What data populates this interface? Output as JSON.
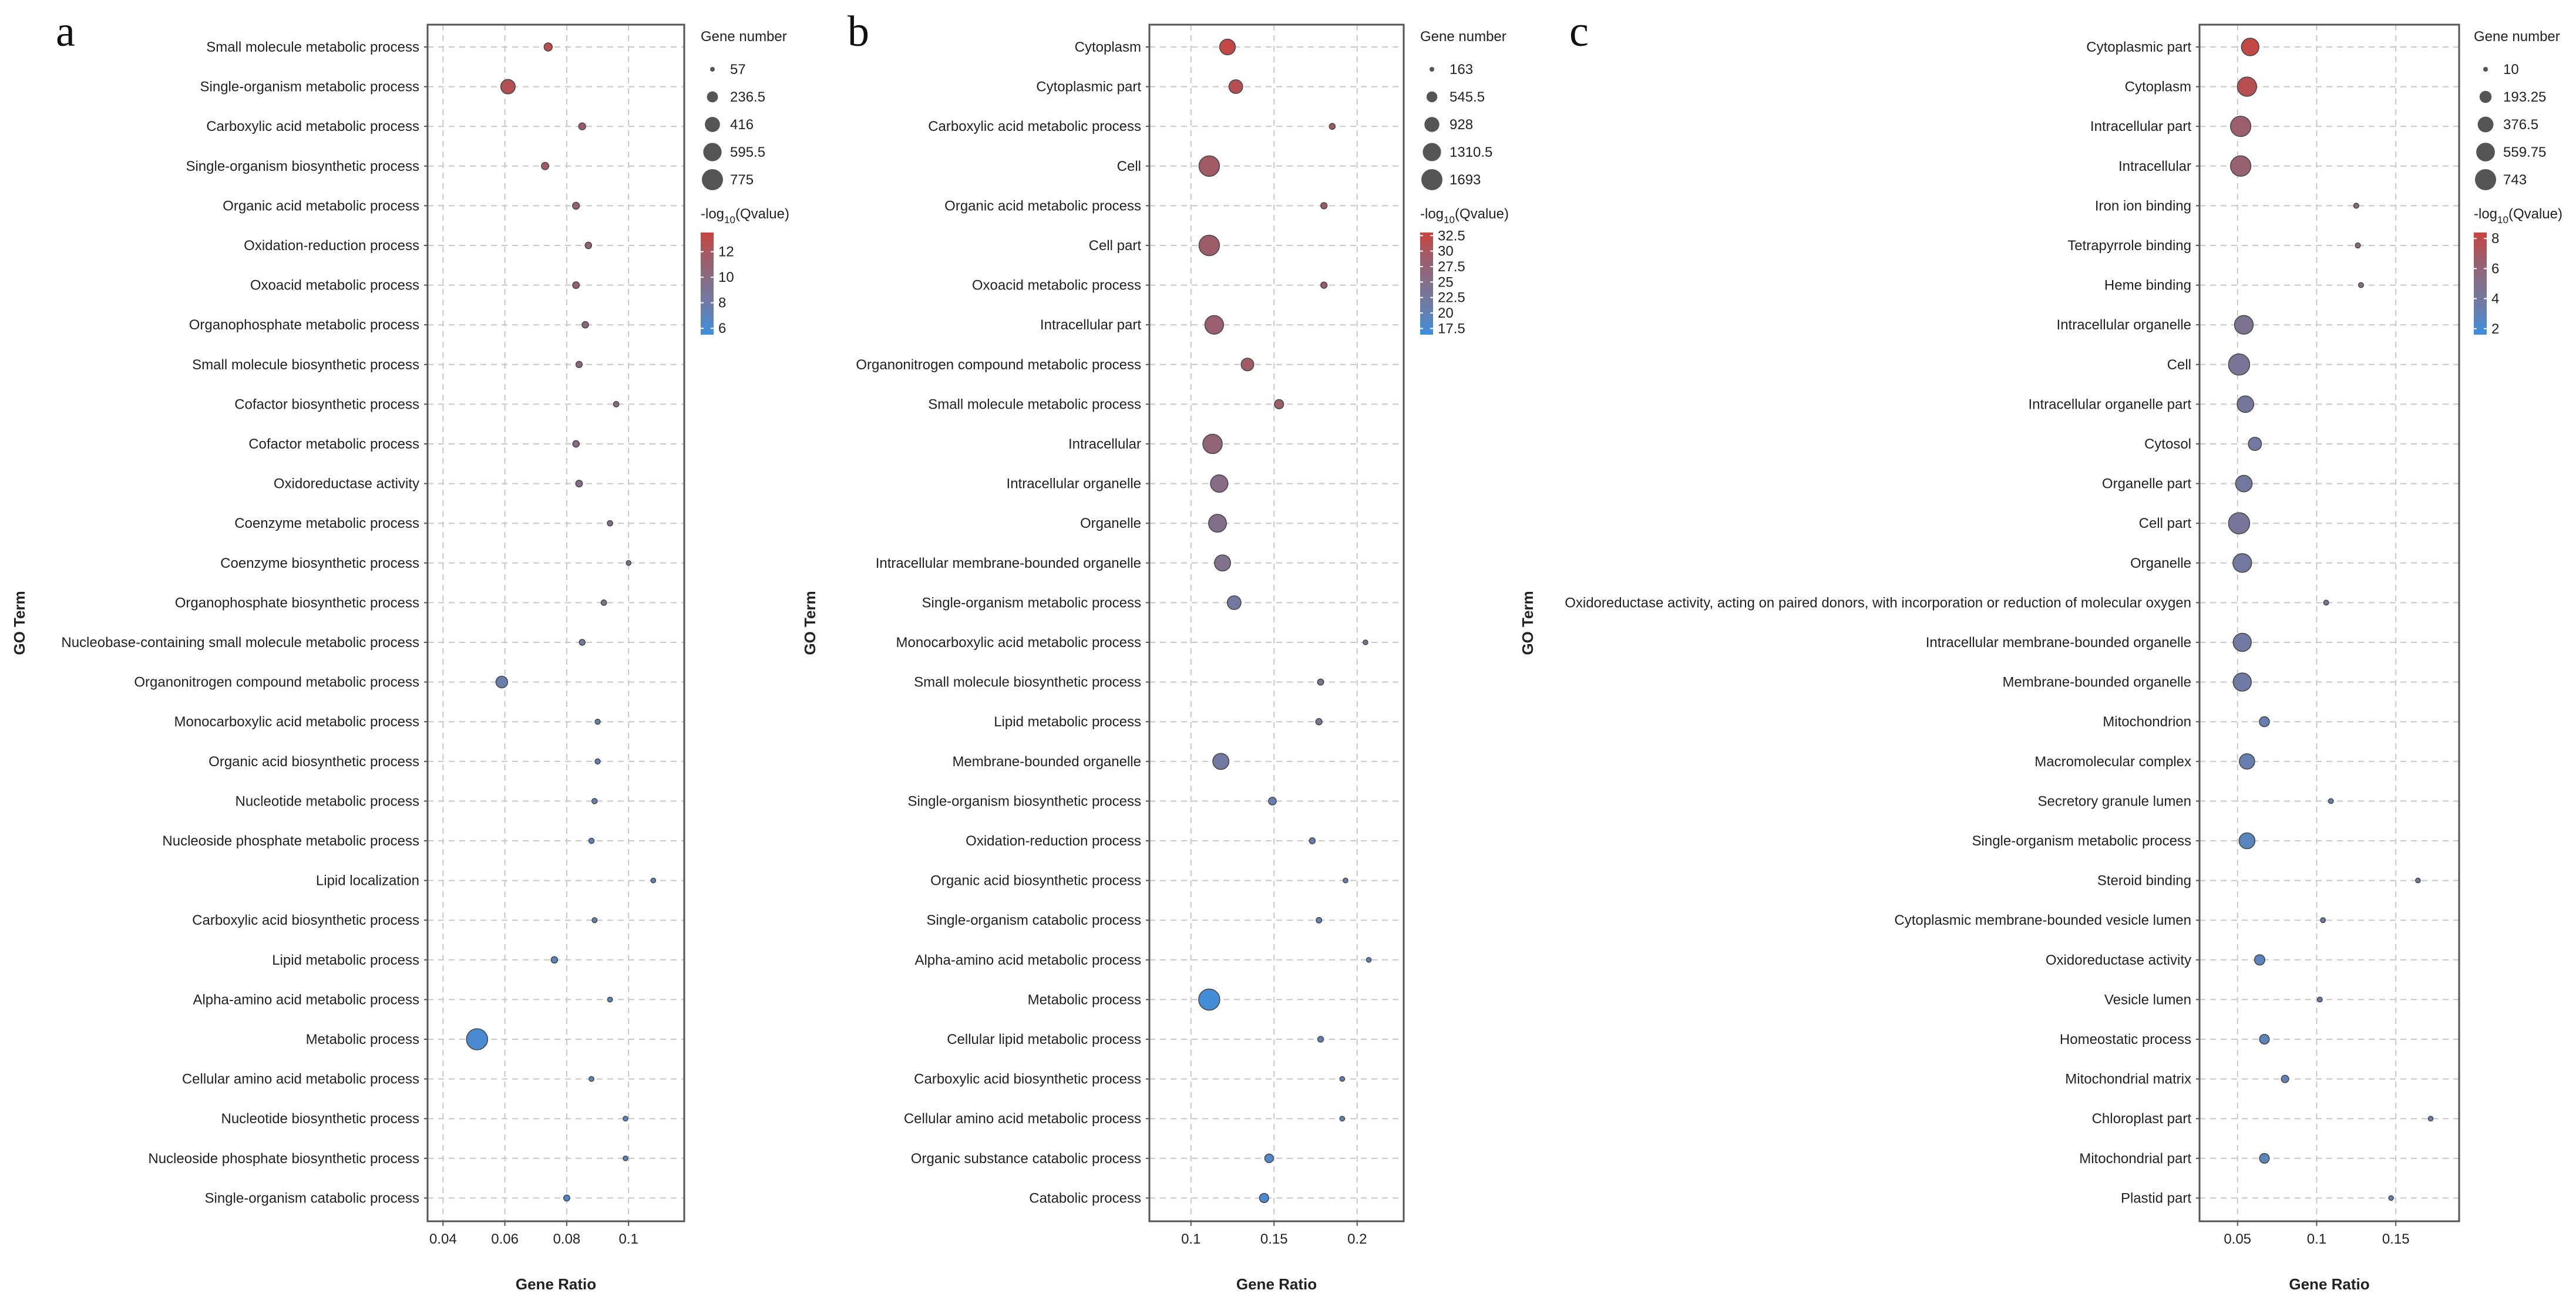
{
  "chart_data": [
    {
      "type": "scatter",
      "panel_label": "a",
      "xlabel": "Gene Ratio",
      "ylabel": "GO Term",
      "xlim": [
        0.035,
        0.118
      ],
      "xticks": [
        0.04,
        0.06,
        0.08,
        0.1
      ],
      "xtick_labels": [
        "0.04",
        "0.06",
        "0.08",
        "0.1"
      ],
      "grid": true,
      "legend_position": "right",
      "size_legend": {
        "title": "Gene number",
        "values": [
          57,
          236.5,
          416,
          595.5,
          775
        ],
        "labels": [
          "57",
          "236.5",
          "416",
          "595.5",
          "775"
        ]
      },
      "color_legend": {
        "title_prefix": "-log",
        "title_sub": "10",
        "title_suffix": "(Qvalue)",
        "min": 5.5,
        "max": 13.5,
        "ticks": [
          6,
          8,
          10,
          12
        ],
        "tick_labels": [
          "6",
          "8",
          "10",
          "12"
        ],
        "low_color": "#3d8fdf",
        "high_color": "#c9443f"
      },
      "points": [
        {
          "term": "Small molecule metabolic process",
          "x": 0.074,
          "genes": 140,
          "q": 13.0
        },
        {
          "term": "Single-organism metabolic process",
          "x": 0.061,
          "genes": 380,
          "q": 12.6
        },
        {
          "term": "Carboxylic acid metabolic process",
          "x": 0.085,
          "genes": 105,
          "q": 11.6
        },
        {
          "term": "Single-organism biosynthetic process",
          "x": 0.073,
          "genes": 115,
          "q": 11.8
        },
        {
          "term": "Organic acid metabolic process",
          "x": 0.083,
          "genes": 105,
          "q": 11.4
        },
        {
          "term": "Oxidation-reduction process",
          "x": 0.087,
          "genes": 95,
          "q": 11.0
        },
        {
          "term": "Oxoacid metabolic process",
          "x": 0.083,
          "genes": 100,
          "q": 11.0
        },
        {
          "term": "Organophosphate metabolic process",
          "x": 0.086,
          "genes": 95,
          "q": 10.6
        },
        {
          "term": "Small molecule biosynthetic process",
          "x": 0.084,
          "genes": 90,
          "q": 10.4
        },
        {
          "term": "Cofactor biosynthetic process",
          "x": 0.096,
          "genes": 70,
          "q": 10.0
        },
        {
          "term": "Cofactor metabolic process",
          "x": 0.083,
          "genes": 95,
          "q": 10.0
        },
        {
          "term": "Oxidoreductase activity",
          "x": 0.084,
          "genes": 100,
          "q": 9.8
        },
        {
          "term": "Coenzyme metabolic process",
          "x": 0.094,
          "genes": 70,
          "q": 9.6
        },
        {
          "term": "Coenzyme biosynthetic process",
          "x": 0.1,
          "genes": 57,
          "q": 9.4
        },
        {
          "term": "Organophosphate biosynthetic process",
          "x": 0.092,
          "genes": 70,
          "q": 9.0
        },
        {
          "term": "Nucleobase-containing small molecule metabolic process",
          "x": 0.085,
          "genes": 80,
          "q": 8.2
        },
        {
          "term": "Organonitrogen compound metabolic process",
          "x": 0.059,
          "genes": 260,
          "q": 7.5
        },
        {
          "term": "Monocarboxylic acid metabolic process",
          "x": 0.09,
          "genes": 65,
          "q": 7.4
        },
        {
          "term": "Organic acid biosynthetic process",
          "x": 0.09,
          "genes": 65,
          "q": 7.2
        },
        {
          "term": "Nucleotide metabolic process",
          "x": 0.089,
          "genes": 68,
          "q": 7.0
        },
        {
          "term": "Nucleoside phosphate metabolic process",
          "x": 0.088,
          "genes": 68,
          "q": 7.0
        },
        {
          "term": "Lipid localization",
          "x": 0.108,
          "genes": 57,
          "q": 6.8
        },
        {
          "term": "Carboxylic acid biosynthetic process",
          "x": 0.089,
          "genes": 62,
          "q": 6.8
        },
        {
          "term": "Lipid metabolic process",
          "x": 0.076,
          "genes": 95,
          "q": 6.6
        },
        {
          "term": "Alpha-amino acid metabolic process",
          "x": 0.094,
          "genes": 60,
          "q": 6.6
        },
        {
          "term": "Metabolic process",
          "x": 0.051,
          "genes": 775,
          "q": 6.0
        },
        {
          "term": "Cellular amino acid metabolic process",
          "x": 0.088,
          "genes": 60,
          "q": 6.4
        },
        {
          "term": "Nucleotide biosynthetic process",
          "x": 0.099,
          "genes": 57,
          "q": 6.3
        },
        {
          "term": "Nucleoside phosphate biosynthetic process",
          "x": 0.099,
          "genes": 57,
          "q": 6.3
        },
        {
          "term": "Single-organism catabolic process",
          "x": 0.08,
          "genes": 85,
          "q": 6.2
        }
      ]
    },
    {
      "type": "scatter",
      "panel_label": "b",
      "xlabel": "Gene Ratio",
      "ylabel": "GO Term",
      "xlim": [
        0.075,
        0.228
      ],
      "xticks": [
        0.1,
        0.15,
        0.2
      ],
      "xtick_labels": [
        "0.1",
        "0.15",
        "0.2"
      ],
      "grid": true,
      "legend_position": "right",
      "size_legend": {
        "title": "Gene number",
        "values": [
          163,
          545.5,
          928,
          1310.5,
          1693
        ],
        "labels": [
          "163",
          "545.5",
          "928",
          "1310.5",
          "1693"
        ]
      },
      "color_legend": {
        "title_prefix": "-log",
        "title_sub": "10",
        "title_suffix": "(Qvalue)",
        "min": 16.5,
        "max": 33.0,
        "ticks": [
          17.5,
          20,
          22.5,
          25,
          27.5,
          30,
          32.5
        ],
        "tick_labels": [
          "17.5",
          "20",
          "22.5",
          "25",
          "27.5",
          "30",
          "32.5"
        ],
        "low_color": "#3d8fdf",
        "high_color": "#c9443f"
      },
      "points": [
        {
          "term": "Cytoplasm",
          "x": 0.122,
          "genes": 1000,
          "q": 32.5
        },
        {
          "term": "Cytoplasmic part",
          "x": 0.127,
          "genes": 800,
          "q": 31.5
        },
        {
          "term": "Carboxylic acid metabolic process",
          "x": 0.185,
          "genes": 220,
          "q": 30.0
        },
        {
          "term": "Cell",
          "x": 0.111,
          "genes": 1600,
          "q": 29.5
        },
        {
          "term": "Organic acid metabolic process",
          "x": 0.18,
          "genes": 240,
          "q": 29.5
        },
        {
          "term": "Cell part",
          "x": 0.111,
          "genes": 1600,
          "q": 29.0
        },
        {
          "term": "Oxoacid metabolic process",
          "x": 0.18,
          "genes": 240,
          "q": 29.0
        },
        {
          "term": "Intracellular part",
          "x": 0.114,
          "genes": 1350,
          "q": 28.5
        },
        {
          "term": "Organonitrogen compound metabolic process",
          "x": 0.134,
          "genes": 700,
          "q": 29.5
        },
        {
          "term": "Small molecule metabolic process",
          "x": 0.153,
          "genes": 420,
          "q": 29.0
        },
        {
          "term": "Intracellular",
          "x": 0.113,
          "genes": 1450,
          "q": 27.5
        },
        {
          "term": "Intracellular organelle",
          "x": 0.117,
          "genes": 1200,
          "q": 25.5
        },
        {
          "term": "Organelle",
          "x": 0.116,
          "genes": 1250,
          "q": 25.0
        },
        {
          "term": "Intracellular membrane-bounded organelle",
          "x": 0.119,
          "genes": 1050,
          "q": 24.5
        },
        {
          "term": "Single-organism metabolic process",
          "x": 0.126,
          "genes": 800,
          "q": 22.0
        },
        {
          "term": "Monocarboxylic acid metabolic process",
          "x": 0.205,
          "genes": 163,
          "q": 24.0
        },
        {
          "term": "Small molecule biosynthetic process",
          "x": 0.178,
          "genes": 230,
          "q": 23.5
        },
        {
          "term": "Lipid metabolic process",
          "x": 0.177,
          "genes": 240,
          "q": 23.0
        },
        {
          "term": "Membrane-bounded organelle",
          "x": 0.118,
          "genes": 1050,
          "q": 22.0
        },
        {
          "term": "Single-organism biosynthetic process",
          "x": 0.149,
          "genes": 320,
          "q": 20.5
        },
        {
          "term": "Oxidation-reduction process",
          "x": 0.173,
          "genes": 220,
          "q": 20.5
        },
        {
          "term": "Organic acid biosynthetic process",
          "x": 0.193,
          "genes": 163,
          "q": 20.0
        },
        {
          "term": "Single-organism catabolic process",
          "x": 0.177,
          "genes": 200,
          "q": 20.0
        },
        {
          "term": "Alpha-amino acid metabolic process",
          "x": 0.207,
          "genes": 163,
          "q": 19.5
        },
        {
          "term": "Metabolic process",
          "x": 0.111,
          "genes": 1693,
          "q": 17.0
        },
        {
          "term": "Cellular lipid metabolic process",
          "x": 0.178,
          "genes": 210,
          "q": 19.5
        },
        {
          "term": "Carboxylic acid biosynthetic process",
          "x": 0.191,
          "genes": 163,
          "q": 19.5
        },
        {
          "term": "Cellular amino acid metabolic process",
          "x": 0.191,
          "genes": 163,
          "q": 19.0
        },
        {
          "term": "Organic substance catabolic process",
          "x": 0.147,
          "genes": 380,
          "q": 18.0
        },
        {
          "term": "Catabolic process",
          "x": 0.144,
          "genes": 420,
          "q": 17.5
        }
      ]
    },
    {
      "type": "scatter",
      "panel_label": "c",
      "xlabel": "Gene Ratio",
      "ylabel": "GO Term",
      "xlim": [
        0.026,
        0.19
      ],
      "xticks": [
        0.05,
        0.1,
        0.15
      ],
      "xtick_labels": [
        "0.05",
        "0.1",
        "0.15"
      ],
      "grid": true,
      "legend_position": "right",
      "size_legend": {
        "title": "Gene number",
        "values": [
          10,
          193.25,
          376.5,
          559.75,
          743
        ],
        "labels": [
          "10",
          "193.25",
          "376.5",
          "559.75",
          "743"
        ]
      },
      "color_legend": {
        "title_prefix": "-log",
        "title_sub": "10",
        "title_suffix": "(Qvalue)",
        "min": 1.6,
        "max": 8.4,
        "ticks": [
          2,
          4,
          6,
          8
        ],
        "tick_labels": [
          "2",
          "4",
          "6",
          "8"
        ],
        "low_color": "#3d8fdf",
        "high_color": "#c9443f"
      },
      "points": [
        {
          "term": "Cytoplasmic part",
          "x": 0.058,
          "genes": 480,
          "q": 8.2
        },
        {
          "term": "Cytoplasm",
          "x": 0.056,
          "genes": 600,
          "q": 7.8
        },
        {
          "term": "Intracellular part",
          "x": 0.052,
          "genes": 680,
          "q": 6.6
        },
        {
          "term": "Intracellular",
          "x": 0.052,
          "genes": 680,
          "q": 6.4
        },
        {
          "term": "Iron ion binding",
          "x": 0.125,
          "genes": 14,
          "q": 5.8
        },
        {
          "term": "Tetrapyrrole binding",
          "x": 0.126,
          "genes": 14,
          "q": 5.6
        },
        {
          "term": "Heme binding",
          "x": 0.128,
          "genes": 13,
          "q": 5.4
        },
        {
          "term": "Intracellular organelle",
          "x": 0.054,
          "genes": 560,
          "q": 4.6
        },
        {
          "term": "Cell",
          "x": 0.051,
          "genes": 743,
          "q": 4.4
        },
        {
          "term": "Intracellular organelle part",
          "x": 0.055,
          "genes": 420,
          "q": 4.2
        },
        {
          "term": "Cytosol",
          "x": 0.061,
          "genes": 240,
          "q": 3.9
        },
        {
          "term": "Organelle part",
          "x": 0.054,
          "genes": 420,
          "q": 4.0
        },
        {
          "term": "Cell part",
          "x": 0.051,
          "genes": 743,
          "q": 4.2
        },
        {
          "term": "Organelle",
          "x": 0.053,
          "genes": 560,
          "q": 4.0
        },
        {
          "term": "Oxidoreductase activity, acting on paired donors, with incorporation or reduction of molecular oxygen",
          "x": 0.106,
          "genes": 12,
          "q": 4.0
        },
        {
          "term": "Intracellular membrane-bounded organelle",
          "x": 0.053,
          "genes": 520,
          "q": 3.8
        },
        {
          "term": "Membrane-bounded organelle",
          "x": 0.053,
          "genes": 520,
          "q": 3.7
        },
        {
          "term": "Mitochondrion",
          "x": 0.067,
          "genes": 120,
          "q": 3.3
        },
        {
          "term": "Macromolecular complex",
          "x": 0.056,
          "genes": 350,
          "q": 3.2
        },
        {
          "term": "Secretory granule lumen",
          "x": 0.109,
          "genes": 12,
          "q": 3.0
        },
        {
          "term": "Single-organism metabolic process",
          "x": 0.056,
          "genes": 380,
          "q": 2.6
        },
        {
          "term": "Steroid binding",
          "x": 0.164,
          "genes": 10,
          "q": 3.8
        },
        {
          "term": "Cytoplasmic membrane-bounded vesicle lumen",
          "x": 0.104,
          "genes": 12,
          "q": 3.6
        },
        {
          "term": "Oxidoreductase activity",
          "x": 0.064,
          "genes": 130,
          "q": 2.7
        },
        {
          "term": "Vesicle lumen",
          "x": 0.102,
          "genes": 12,
          "q": 3.0
        },
        {
          "term": "Homeostatic process",
          "x": 0.067,
          "genes": 110,
          "q": 2.7
        },
        {
          "term": "Mitochondrial matrix",
          "x": 0.08,
          "genes": 50,
          "q": 2.8
        },
        {
          "term": "Chloroplast part",
          "x": 0.172,
          "genes": 10,
          "q": 3.0
        },
        {
          "term": "Mitochondrial part",
          "x": 0.067,
          "genes": 110,
          "q": 2.7
        },
        {
          "term": "Plastid part",
          "x": 0.147,
          "genes": 10,
          "q": 3.0
        }
      ]
    }
  ]
}
